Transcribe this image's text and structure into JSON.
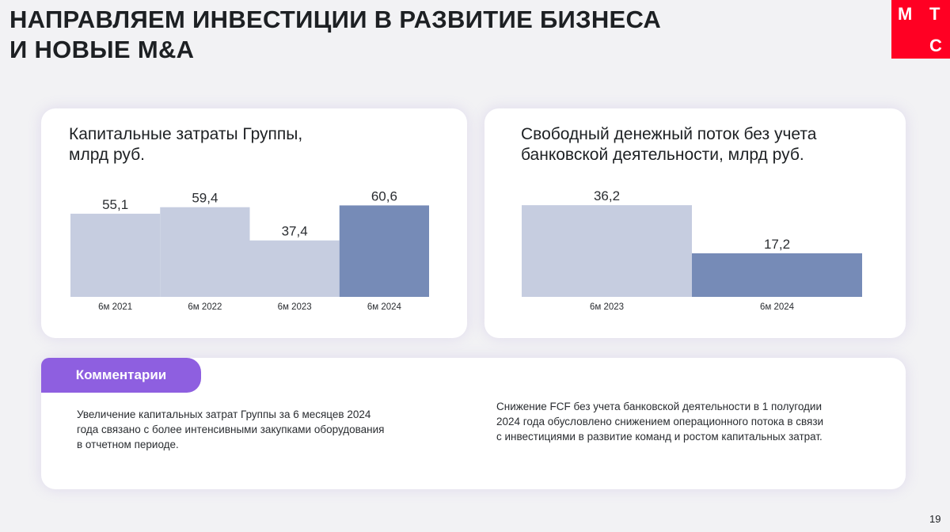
{
  "title_lines": [
    "НАПРАВЛЯЕМ ИНВЕСТИЦИИ В РАЗВИТИЕ БИЗНЕСА",
    "И НОВЫЕ M&A"
  ],
  "logo": {
    "letters": [
      "М",
      "Т",
      "С"
    ],
    "color": "#ff0023"
  },
  "colors": {
    "bar_light": "#c6cde0",
    "bar_dark": "#768bb7",
    "accent_purple": "#8e5fe0"
  },
  "chart_data": [
    {
      "type": "bar",
      "title_lines": [
        "Капитальные затраты Группы,",
        "млрд руб."
      ],
      "categories": [
        "6м 2021",
        "6м 2022",
        "6м 2023",
        "6м 2024"
      ],
      "values": [
        55.1,
        59.4,
        37.4,
        60.6
      ],
      "value_labels": [
        "55,1",
        "59,4",
        "37,4",
        "60,6"
      ],
      "highlight_index": 3,
      "ylim": [
        0,
        75
      ],
      "grid": false
    },
    {
      "type": "bar",
      "title_lines": [
        "Свободный денежный поток без учета",
        "банковской деятельности, млрд руб."
      ],
      "categories": [
        "6м 2023",
        "6м 2024"
      ],
      "values": [
        36.2,
        17.2
      ],
      "value_labels": [
        "36,2",
        "17,2"
      ],
      "highlight_index": 1,
      "ylim": [
        0,
        40
      ],
      "grid": false
    }
  ],
  "comments": {
    "tab_label": "Комментарии",
    "left_lines": [
      "Увеличение капитальных затрат Группы за 6 месяцев 2024",
      "года связано с более интенсивными закупками оборудования",
      "в отчетном периоде."
    ],
    "right_lines": [
      "Снижение FCF без учета банковской деятельности в 1 полугодии",
      "2024 года обусловлено снижением операционного потока в связи",
      "с инвестициями в развитие команд и ростом капитальных затрат."
    ]
  },
  "page_number": "19"
}
